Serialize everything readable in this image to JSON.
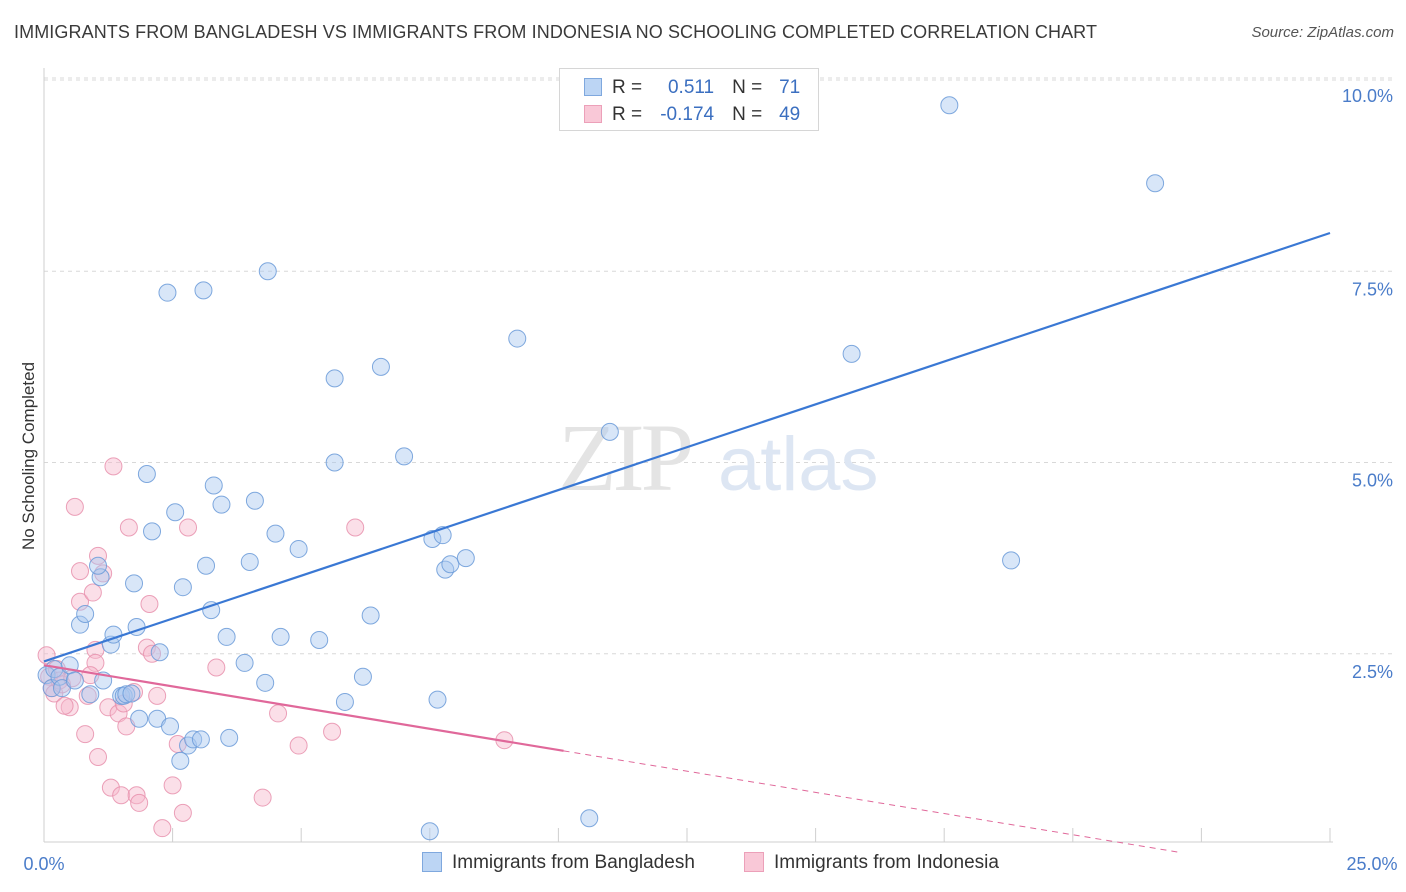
{
  "title": "IMMIGRANTS FROM BANGLADESH VS IMMIGRANTS FROM INDONESIA NO SCHOOLING COMPLETED CORRELATION CHART",
  "source": "Source: ZipAtlas.com",
  "watermark": {
    "zip": "ZIP",
    "atlas": "atlas"
  },
  "legend": {
    "r_label": "R =",
    "n_label": "N =",
    "rows": [
      {
        "r": "0.511",
        "n": "71"
      },
      {
        "r": "-0.174",
        "n": "49"
      }
    ]
  },
  "colors": {
    "blue_fill": "#a8c8f0",
    "blue_stroke": "#6a9ad8",
    "blue_line": "#3a78d4",
    "pink_fill": "#f7b8cc",
    "pink_stroke": "#e890ad",
    "pink_line": "#e0689a",
    "tick_label": "#4a7cc9",
    "grid": "#d8d8d8"
  },
  "chart_data": {
    "type": "scatter",
    "title": "IMMIGRANTS FROM BANGLADESH VS IMMIGRANTS FROM INDONESIA NO SCHOOLING COMPLETED CORRELATION CHART",
    "xlabel": "",
    "ylabel": "No Schooling Completed",
    "xlim": [
      0,
      25
    ],
    "ylim": [
      0,
      10.3
    ],
    "x_tick_labels": [
      "0.0%",
      "25.0%"
    ],
    "y_ticks": [
      2.5,
      5.0,
      7.5,
      10.0
    ],
    "y_tick_labels": [
      "2.5%",
      "5.0%",
      "7.5%",
      "10.0%"
    ],
    "grid": true,
    "legend_position": "top-center",
    "series": [
      {
        "name": "Immigrants from Bangladesh",
        "r": 0.511,
        "n": 71,
        "trend": {
          "x": [
            0,
            25
          ],
          "y": [
            2.4,
            8.0
          ],
          "solid_to": 25
        },
        "points": [
          [
            0.05,
            2.22
          ],
          [
            0.15,
            2.05
          ],
          [
            0.2,
            2.3
          ],
          [
            0.3,
            2.2
          ],
          [
            0.35,
            2.05
          ],
          [
            0.5,
            2.35
          ],
          [
            0.6,
            2.15
          ],
          [
            0.9,
            1.97
          ],
          [
            0.7,
            2.88
          ],
          [
            0.8,
            3.02
          ],
          [
            1.1,
            3.5
          ],
          [
            1.05,
            3.65
          ],
          [
            1.15,
            2.15
          ],
          [
            1.3,
            2.62
          ],
          [
            1.35,
            2.75
          ],
          [
            1.5,
            1.95
          ],
          [
            1.55,
            1.95
          ],
          [
            1.6,
            1.97
          ],
          [
            1.75,
            3.42
          ],
          [
            1.8,
            2.85
          ],
          [
            1.85,
            1.65
          ],
          [
            2.0,
            4.85
          ],
          [
            2.1,
            4.1
          ],
          [
            2.2,
            1.65
          ],
          [
            2.25,
            2.52
          ],
          [
            2.4,
            7.22
          ],
          [
            2.45,
            1.55
          ],
          [
            2.55,
            4.35
          ],
          [
            2.65,
            1.1
          ],
          [
            2.7,
            3.37
          ],
          [
            2.8,
            1.3
          ],
          [
            2.9,
            1.38
          ],
          [
            3.05,
            1.38
          ],
          [
            3.1,
            7.25
          ],
          [
            3.15,
            3.65
          ],
          [
            3.25,
            3.07
          ],
          [
            3.3,
            4.7
          ],
          [
            3.45,
            4.45
          ],
          [
            3.55,
            2.72
          ],
          [
            3.6,
            1.4
          ],
          [
            3.9,
            2.38
          ],
          [
            4.0,
            3.7
          ],
          [
            4.1,
            4.5
          ],
          [
            4.3,
            2.12
          ],
          [
            4.35,
            7.5
          ],
          [
            4.5,
            4.07
          ],
          [
            4.6,
            2.72
          ],
          [
            4.95,
            3.87
          ],
          [
            5.35,
            2.68
          ],
          [
            5.65,
            5.0
          ],
          [
            5.65,
            6.1
          ],
          [
            5.85,
            1.87
          ],
          [
            6.2,
            2.2
          ],
          [
            6.35,
            3.0
          ],
          [
            6.55,
            6.25
          ],
          [
            7.0,
            5.08
          ],
          [
            7.5,
            0.18
          ],
          [
            7.55,
            4.0
          ],
          [
            7.65,
            1.9
          ],
          [
            7.75,
            4.05
          ],
          [
            7.8,
            3.6
          ],
          [
            7.9,
            3.67
          ],
          [
            8.2,
            3.75
          ],
          [
            9.2,
            6.62
          ],
          [
            10.6,
            0.35
          ],
          [
            11.0,
            5.4
          ],
          [
            15.7,
            6.42
          ],
          [
            17.6,
            9.67
          ],
          [
            18.8,
            3.72
          ],
          [
            21.6,
            8.65
          ],
          [
            1.7,
            1.98
          ]
        ]
      },
      {
        "name": "Immigrants from Indonesia",
        "r": -0.174,
        "n": 49,
        "trend": {
          "x": [
            0,
            25
          ],
          "y": [
            2.35,
            -0.42
          ],
          "solid_to": 10.1
        },
        "points": [
          [
            0.05,
            2.48
          ],
          [
            0.1,
            2.2
          ],
          [
            0.15,
            2.05
          ],
          [
            0.2,
            1.98
          ],
          [
            0.25,
            2.3
          ],
          [
            0.3,
            2.15
          ],
          [
            0.35,
            2.1
          ],
          [
            0.5,
            1.8
          ],
          [
            0.55,
            2.18
          ],
          [
            0.6,
            4.42
          ],
          [
            0.7,
            3.18
          ],
          [
            0.7,
            3.58
          ],
          [
            0.8,
            1.45
          ],
          [
            0.85,
            1.95
          ],
          [
            0.95,
            3.3
          ],
          [
            1.0,
            2.55
          ],
          [
            1.0,
            2.38
          ],
          [
            1.05,
            3.78
          ],
          [
            1.05,
            1.15
          ],
          [
            1.15,
            3.55
          ],
          [
            1.25,
            1.8
          ],
          [
            1.3,
            0.75
          ],
          [
            1.35,
            4.95
          ],
          [
            1.45,
            1.72
          ],
          [
            1.5,
            0.65
          ],
          [
            1.55,
            1.85
          ],
          [
            1.6,
            1.55
          ],
          [
            1.65,
            4.15
          ],
          [
            1.75,
            2.0
          ],
          [
            1.8,
            0.65
          ],
          [
            1.85,
            0.55
          ],
          [
            2.0,
            2.58
          ],
          [
            2.05,
            3.15
          ],
          [
            2.1,
            2.5
          ],
          [
            2.2,
            1.95
          ],
          [
            2.3,
            0.22
          ],
          [
            2.5,
            0.78
          ],
          [
            2.6,
            1.32
          ],
          [
            2.7,
            0.42
          ],
          [
            2.8,
            4.15
          ],
          [
            3.35,
            2.32
          ],
          [
            4.25,
            0.62
          ],
          [
            4.55,
            1.72
          ],
          [
            4.95,
            1.3
          ],
          [
            5.6,
            1.48
          ],
          [
            6.05,
            4.15
          ],
          [
            8.95,
            1.37
          ],
          [
            0.4,
            1.82
          ],
          [
            0.9,
            2.22
          ]
        ]
      }
    ]
  },
  "bottom_legend": [
    {
      "label": "Immigrants from Bangladesh"
    },
    {
      "label": "Immigrants from Indonesia"
    }
  ]
}
